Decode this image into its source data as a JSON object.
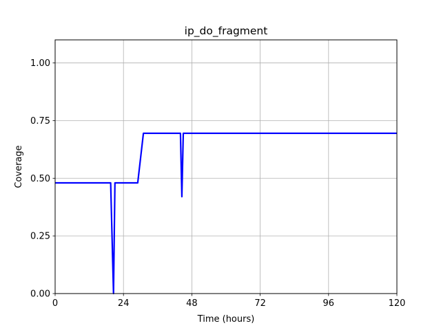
{
  "chart_data": {
    "type": "line",
    "title": "ip_do_fragment",
    "xlabel": "Time (hours)",
    "ylabel": "Coverage",
    "xlim": [
      0,
      120
    ],
    "ylim": [
      0.0,
      1.1
    ],
    "xticks": [
      0,
      24,
      48,
      72,
      96,
      120
    ],
    "yticks": [
      0.0,
      0.25,
      0.5,
      0.75,
      1.0
    ],
    "xtick_labels": [
      "0",
      "24",
      "48",
      "72",
      "96",
      "120"
    ],
    "ytick_labels": [
      "0.00",
      "0.25",
      "0.50",
      "0.75",
      "1.00"
    ],
    "grid": true,
    "line_color": "#0000ff",
    "series": [
      {
        "x": [
          0,
          19.5,
          20.5,
          21.0,
          22.0,
          29.0,
          31.0,
          44.0,
          44.5,
          45.0,
          46.0,
          120
        ],
        "y": [
          0.48,
          0.48,
          0.0,
          0.48,
          0.48,
          0.48,
          0.695,
          0.695,
          0.42,
          0.695,
          0.695,
          0.695
        ]
      }
    ]
  }
}
